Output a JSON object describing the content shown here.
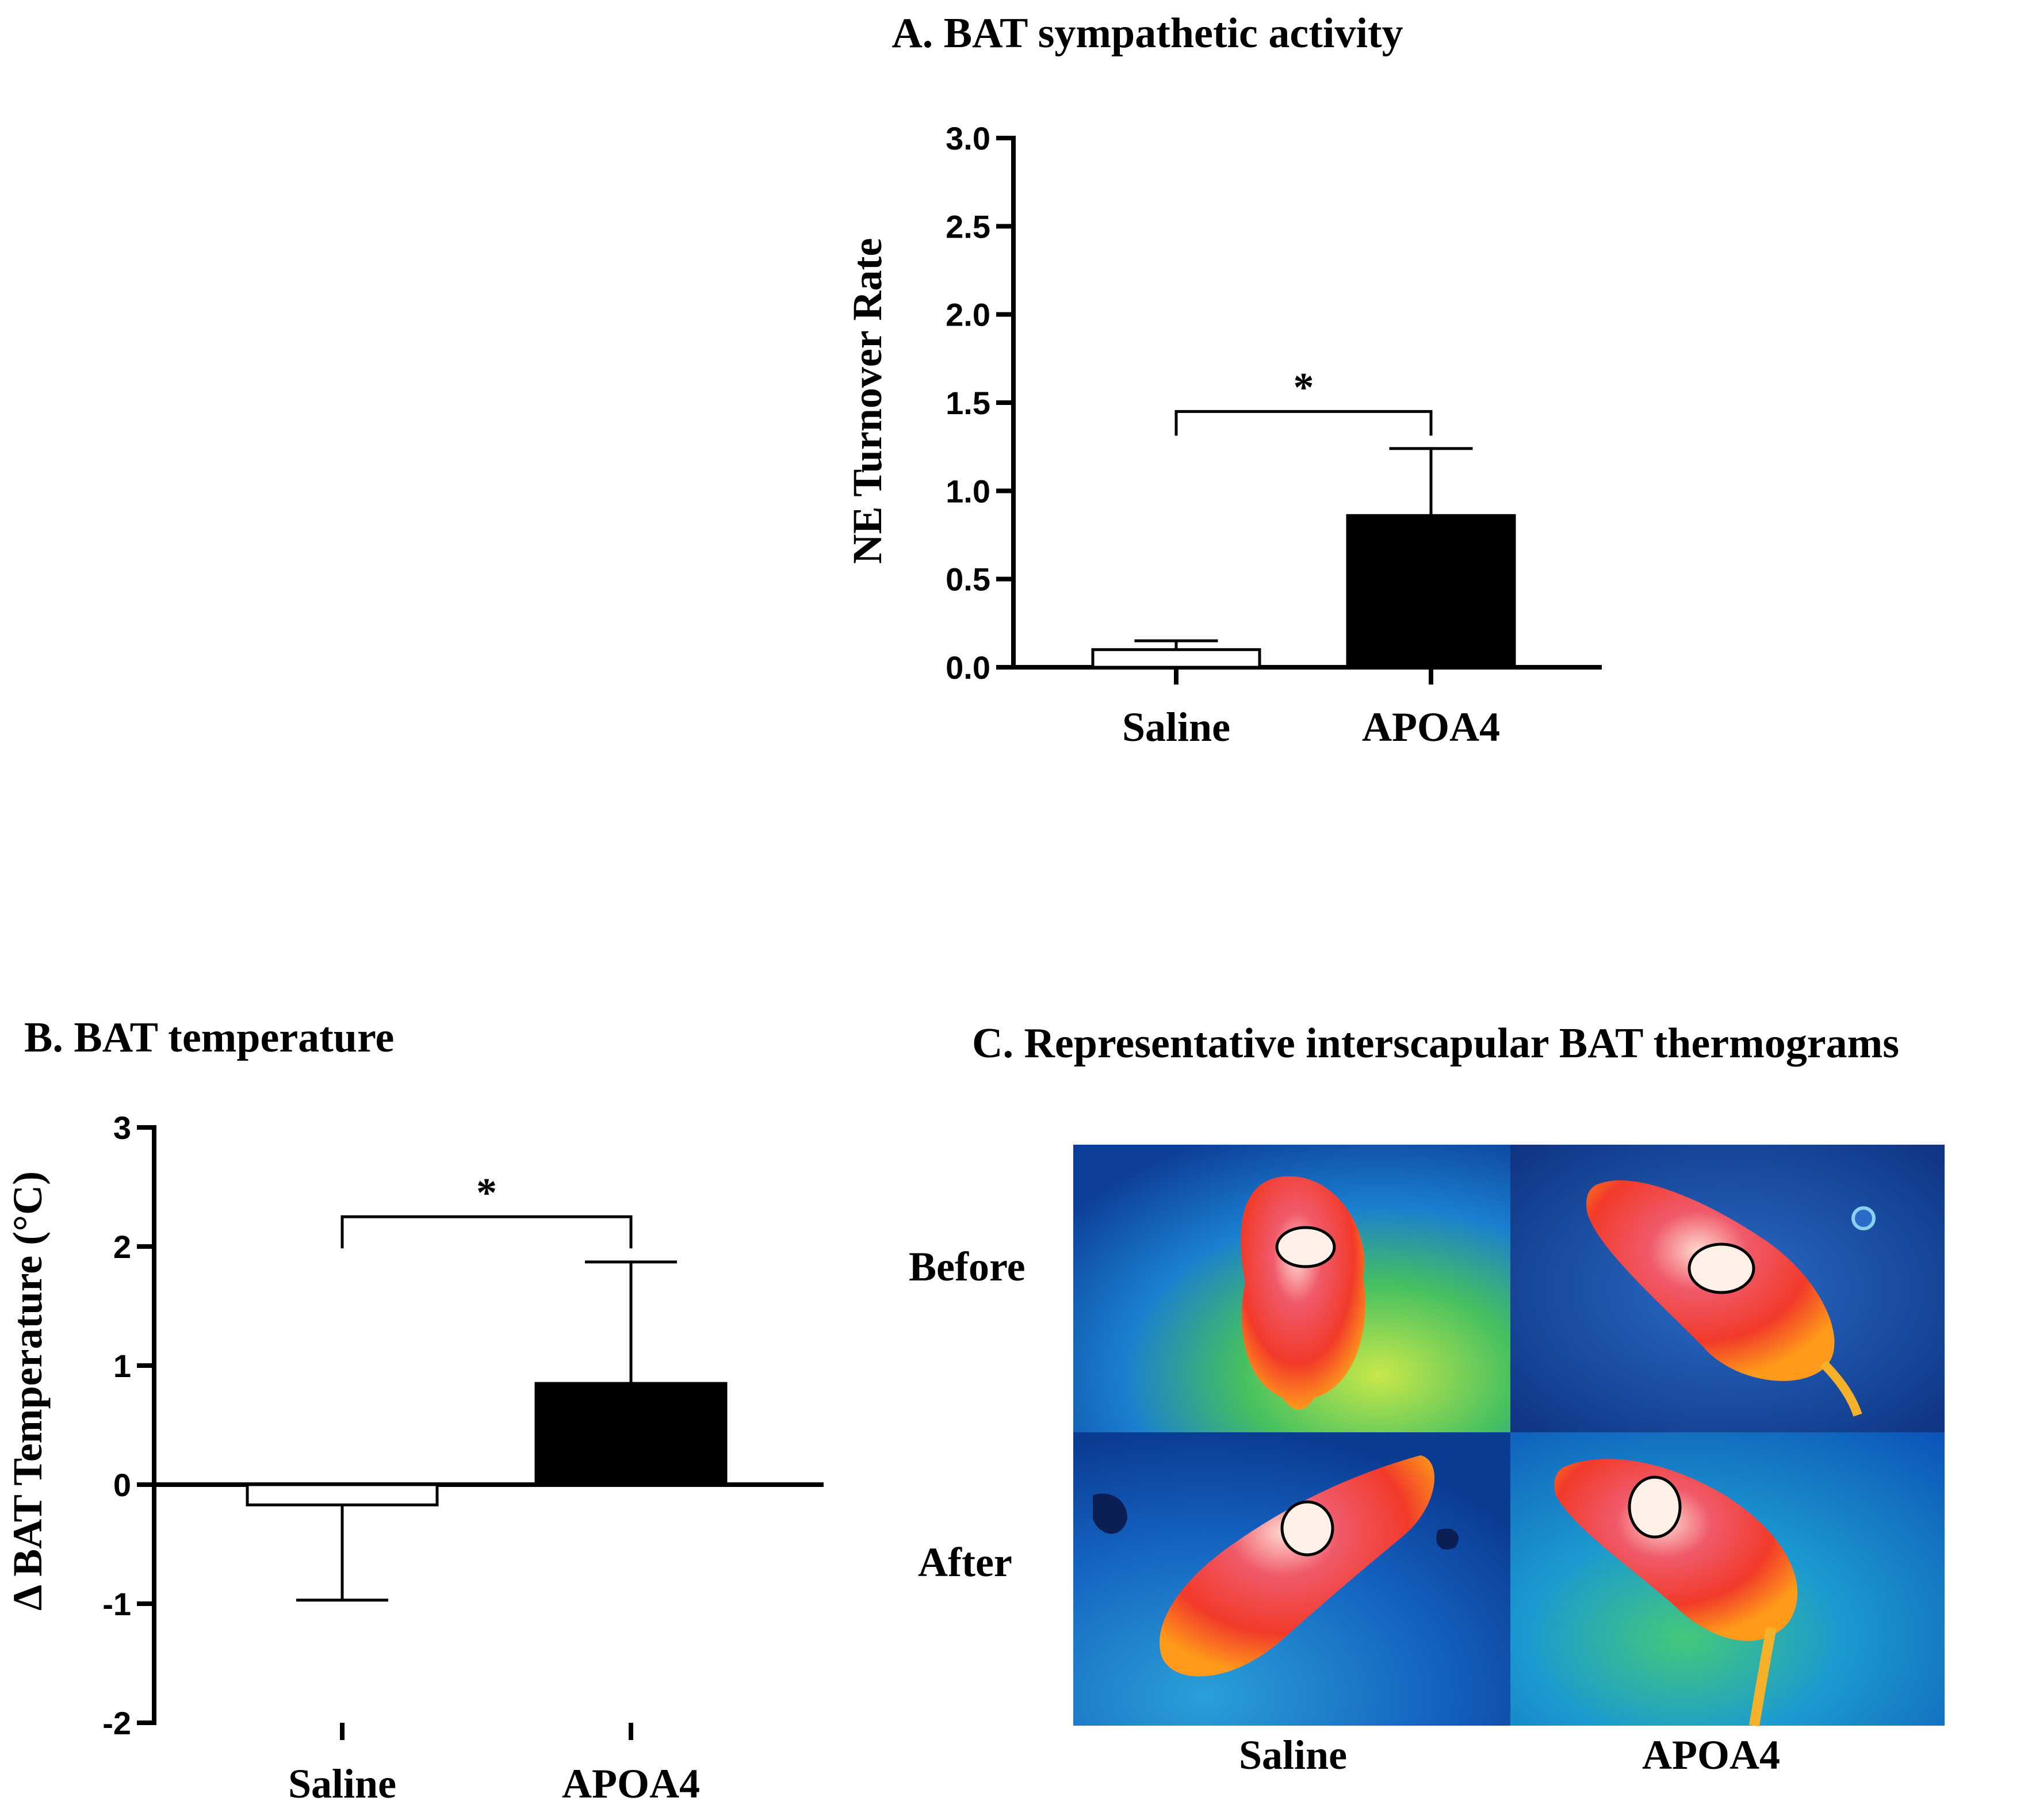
{
  "chart_data": [
    {
      "id": "A",
      "type": "bar",
      "title": "A. BAT sympathetic activity",
      "ylabel": "NE Turnover Rate",
      "categories": [
        "Saline",
        "APOA4"
      ],
      "values": [
        0.1,
        0.86
      ],
      "errors": [
        0.05,
        0.38
      ],
      "bar_colors": [
        "#ffffff",
        "#000000"
      ],
      "ylim": [
        0,
        3.0
      ],
      "yticks": [
        "0.0",
        "0.5",
        "1.0",
        "1.5",
        "2.0",
        "2.5",
        "3.0"
      ],
      "significance": "*"
    },
    {
      "id": "B",
      "type": "bar",
      "title": "B. BAT temperature",
      "ylabel": "Δ BAT Temperature  (°C)",
      "categories": [
        "Saline",
        "APOA4"
      ],
      "values": [
        -0.17,
        0.85
      ],
      "errors": [
        0.8,
        1.02
      ],
      "bar_colors": [
        "#ffffff",
        "#000000"
      ],
      "ylim": [
        -2,
        3
      ],
      "yticks": [
        "-2",
        "-1",
        "0",
        "1",
        "2",
        "3"
      ],
      "significance": "*"
    }
  ],
  "thermograms": {
    "title": "C. Representative interscapular BAT thermograms",
    "rows": [
      "Before",
      "After"
    ],
    "columns": [
      "Saline",
      "APOA4"
    ]
  }
}
